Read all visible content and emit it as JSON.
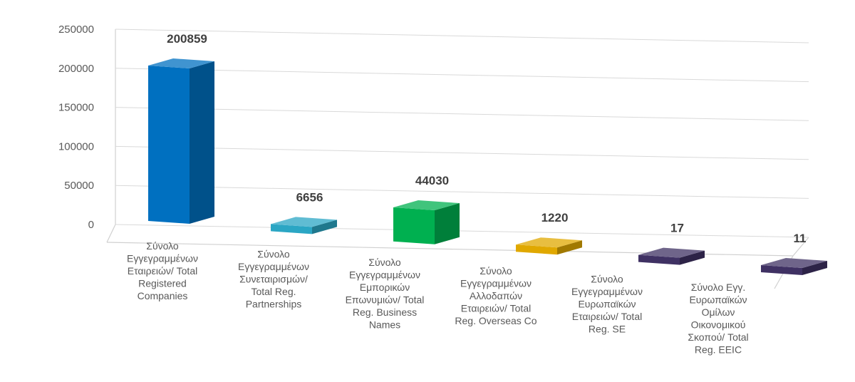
{
  "chart_data": {
    "type": "bar",
    "title": "",
    "xlabel": "",
    "ylabel": "",
    "ylim": [
      0,
      250000
    ],
    "yticks": [
      "0",
      "50000",
      "100000",
      "150000",
      "200000",
      "250000"
    ],
    "grid": true,
    "style": "3d-perspective",
    "categories": [
      "Σύνολο Εγγεγραμμένων Εταιρειών/ Total Registered Companies",
      "Σύνολο Εγγεγραμμένων Συνεταιρισμών/ Total Reg. Partnerships",
      "Σύνολο Εγγεγραμμένων Εμπορικών Επωνυμιών/ Total Reg. Business Names",
      "Σύνολο Εγγεγραμμένων Αλλοδαπών Εταιρειών/ Total Reg. Overseas Co",
      "Σύνολο Εγγεγραμμένων Ευρωπαϊκών Εταιρειών/ Total Reg. SE",
      "Σύνολο Εγγ. Ευρωπαϊκών Ομίλων Οικονομικού Σκοπού/ Total Reg. EEIC"
    ],
    "category_lines": [
      [
        "Σύνολο",
        "Εγγεγραμμένων",
        "Εταιρειών/ Total",
        "Registered",
        "Companies"
      ],
      [
        "Σύνολο",
        "Εγγεγραμμένων",
        "Συνεταιρισμών/",
        "Total Reg.",
        "Partnerships"
      ],
      [
        "Σύνολο",
        "Εγγεγραμμένων",
        "Εμπορικών",
        "Επωνυμιών/ Total",
        "Reg. Business",
        "Names"
      ],
      [
        "Σύνολο",
        "Εγγεγραμμένων",
        "Αλλοδαπών",
        "Εταιρειών/ Total",
        "Reg. Overseas Co"
      ],
      [
        "Σύνολο",
        "Εγγεγραμμένων",
        "Ευρωπαϊκών",
        "Εταιρειών/ Total",
        "Reg. SE"
      ],
      [
        "Σύνολο Εγγ.",
        "Ευρωπαϊκών",
        "Ομίλων",
        "Οικονομικού",
        "Σκοπού/ Total",
        "Reg. EEIC"
      ]
    ],
    "values": [
      200859,
      6656,
      44030,
      1220,
      17,
      11
    ],
    "value_labels": [
      "200859",
      "6656",
      "44030",
      "1220",
      "17",
      "11"
    ],
    "colors": [
      "#0070C0",
      "#2BA6C4",
      "#00B050",
      "#E0A800",
      "#3F3163",
      "#3F3163"
    ]
  }
}
